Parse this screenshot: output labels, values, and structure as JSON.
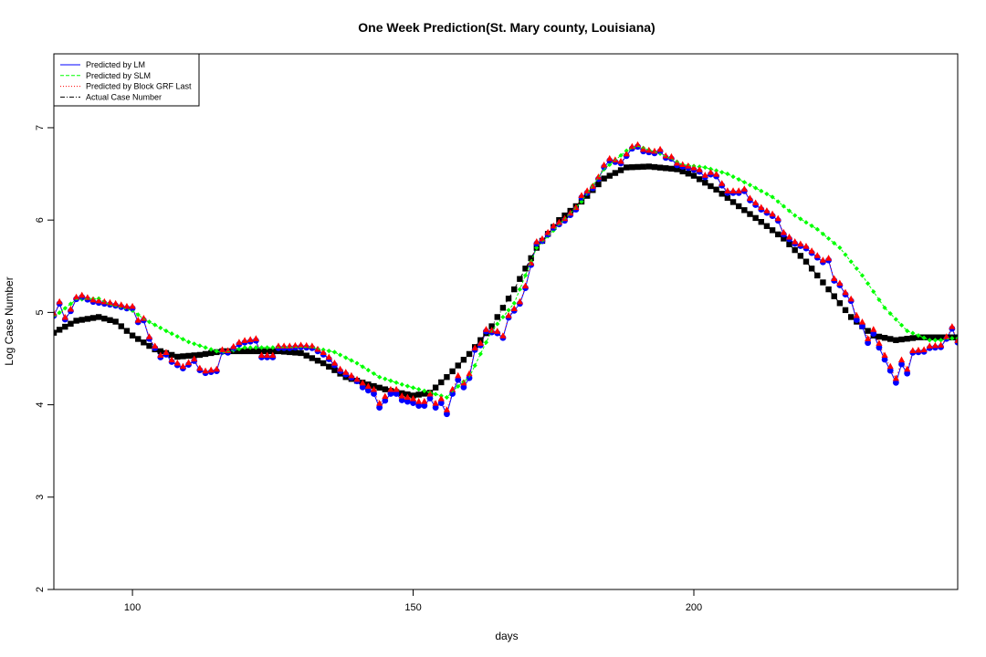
{
  "chart_data": {
    "type": "scatter",
    "title": "One Week Prediction(St. Mary county, Louisiana)",
    "xlabel": "days",
    "ylabel": "Log Case Number",
    "xlim": [
      86,
      247
    ],
    "ylim": [
      2,
      7.8
    ],
    "x_ticks": [
      100,
      150,
      200
    ],
    "y_ticks": [
      2,
      3,
      4,
      5,
      6,
      7
    ],
    "grid": false,
    "legend_position": "top-left",
    "legend": [
      {
        "label": "Predicted by LM",
        "color": "#0000ff",
        "style": "solid"
      },
      {
        "label": "Predicted by SLM",
        "color": "#00ff00",
        "style": "dashed"
      },
      {
        "label": "Predicted by Block GRF Last",
        "color": "#ff0000",
        "style": "dotted"
      },
      {
        "label": "Actual Case Number",
        "color": "#000000",
        "style": "dotdash"
      }
    ],
    "actual_knots": [
      [
        86,
        4.78
      ],
      [
        90,
        4.91
      ],
      [
        94,
        4.95
      ],
      [
        97,
        4.9
      ],
      [
        100,
        4.75
      ],
      [
        104,
        4.6
      ],
      [
        108,
        4.52
      ],
      [
        112,
        4.54
      ],
      [
        116,
        4.58
      ],
      [
        120,
        4.58
      ],
      [
        126,
        4.58
      ],
      [
        130,
        4.56
      ],
      [
        134,
        4.45
      ],
      [
        138,
        4.3
      ],
      [
        142,
        4.22
      ],
      [
        146,
        4.15
      ],
      [
        150,
        4.1
      ],
      [
        153,
        4.13
      ],
      [
        156,
        4.3
      ],
      [
        160,
        4.55
      ],
      [
        164,
        4.85
      ],
      [
        168,
        5.25
      ],
      [
        172,
        5.7
      ],
      [
        176,
        6.0
      ],
      [
        180,
        6.2
      ],
      [
        184,
        6.45
      ],
      [
        188,
        6.57
      ],
      [
        192,
        6.58
      ],
      [
        197,
        6.55
      ],
      [
        200,
        6.48
      ],
      [
        204,
        6.33
      ],
      [
        208,
        6.15
      ],
      [
        212,
        5.98
      ],
      [
        216,
        5.8
      ],
      [
        220,
        5.55
      ],
      [
        224,
        5.25
      ],
      [
        228,
        4.95
      ],
      [
        232,
        4.75
      ],
      [
        236,
        4.7
      ],
      [
        240,
        4.73
      ]
    ],
    "slm_knots": [
      [
        86,
        4.95
      ],
      [
        90,
        5.14
      ],
      [
        94,
        5.15
      ],
      [
        96,
        5.08
      ],
      [
        100,
        5.02
      ],
      [
        102,
        4.93
      ],
      [
        106,
        4.8
      ],
      [
        110,
        4.68
      ],
      [
        114,
        4.6
      ],
      [
        116,
        4.56
      ],
      [
        120,
        4.62
      ],
      [
        126,
        4.62
      ],
      [
        132,
        4.62
      ],
      [
        136,
        4.57
      ],
      [
        140,
        4.45
      ],
      [
        144,
        4.3
      ],
      [
        148,
        4.22
      ],
      [
        152,
        4.15
      ],
      [
        156,
        4.08
      ],
      [
        158,
        4.2
      ],
      [
        160,
        4.3
      ],
      [
        164,
        4.8
      ],
      [
        168,
        5.1
      ],
      [
        172,
        5.7
      ],
      [
        176,
        5.95
      ],
      [
        180,
        6.2
      ],
      [
        184,
        6.55
      ],
      [
        188,
        6.75
      ],
      [
        190,
        6.8
      ],
      [
        194,
        6.72
      ],
      [
        198,
        6.6
      ],
      [
        202,
        6.57
      ],
      [
        206,
        6.5
      ],
      [
        210,
        6.38
      ],
      [
        214,
        6.25
      ],
      [
        218,
        6.05
      ],
      [
        222,
        5.9
      ],
      [
        226,
        5.7
      ],
      [
        230,
        5.4
      ],
      [
        234,
        5.05
      ],
      [
        238,
        4.8
      ],
      [
        242,
        4.7
      ],
      [
        244,
        4.7
      ],
      [
        246,
        4.72
      ]
    ],
    "predicted_knots": [
      [
        86,
        4.97
      ],
      [
        87,
        5.1
      ],
      [
        88,
        4.93
      ],
      [
        89,
        5.02
      ],
      [
        90,
        5.15
      ],
      [
        91,
        5.17
      ],
      [
        93,
        5.12
      ],
      [
        95,
        5.1
      ],
      [
        97,
        5.08
      ],
      [
        99,
        5.05
      ],
      [
        100,
        5.05
      ],
      [
        101,
        4.9
      ],
      [
        102,
        4.92
      ],
      [
        103,
        4.72
      ],
      [
        104,
        4.62
      ],
      [
        105,
        4.52
      ],
      [
        106,
        4.55
      ],
      [
        107,
        4.47
      ],
      [
        109,
        4.4
      ],
      [
        111,
        4.48
      ],
      [
        112,
        4.38
      ],
      [
        113,
        4.35
      ],
      [
        115,
        4.37
      ],
      [
        116,
        4.58
      ],
      [
        117,
        4.57
      ],
      [
        119,
        4.66
      ],
      [
        120,
        4.68
      ],
      [
        122,
        4.7
      ],
      [
        123,
        4.52
      ],
      [
        125,
        4.52
      ],
      [
        126,
        4.62
      ],
      [
        128,
        4.62
      ],
      [
        130,
        4.63
      ],
      [
        132,
        4.62
      ],
      [
        134,
        4.55
      ],
      [
        135,
        4.5
      ],
      [
        137,
        4.37
      ],
      [
        139,
        4.3
      ],
      [
        141,
        4.22
      ],
      [
        143,
        4.15
      ],
      [
        144,
        4.0
      ],
      [
        146,
        4.15
      ],
      [
        147,
        4.15
      ],
      [
        148,
        4.08
      ],
      [
        150,
        4.05
      ],
      [
        151,
        4.02
      ],
      [
        152,
        4.02
      ],
      [
        153,
        4.1
      ],
      [
        154,
        4.0
      ],
      [
        155,
        4.05
      ],
      [
        156,
        3.93
      ],
      [
        157,
        4.15
      ],
      [
        158,
        4.3
      ],
      [
        159,
        4.22
      ],
      [
        160,
        4.32
      ],
      [
        161,
        4.6
      ],
      [
        162,
        4.65
      ],
      [
        163,
        4.8
      ],
      [
        165,
        4.78
      ],
      [
        166,
        4.73
      ],
      [
        167,
        4.95
      ],
      [
        169,
        5.1
      ],
      [
        170,
        5.27
      ],
      [
        171,
        5.52
      ],
      [
        172,
        5.75
      ],
      [
        173,
        5.78
      ],
      [
        175,
        5.92
      ],
      [
        177,
        6.0
      ],
      [
        179,
        6.12
      ],
      [
        180,
        6.25
      ],
      [
        182,
        6.35
      ],
      [
        183,
        6.45
      ],
      [
        184,
        6.58
      ],
      [
        185,
        6.65
      ],
      [
        187,
        6.62
      ],
      [
        188,
        6.7
      ],
      [
        189,
        6.78
      ],
      [
        190,
        6.8
      ],
      [
        191,
        6.75
      ],
      [
        193,
        6.73
      ],
      [
        194,
        6.75
      ],
      [
        195,
        6.68
      ],
      [
        196,
        6.67
      ],
      [
        197,
        6.6
      ],
      [
        199,
        6.57
      ],
      [
        201,
        6.53
      ],
      [
        202,
        6.47
      ],
      [
        203,
        6.5
      ],
      [
        204,
        6.48
      ],
      [
        205,
        6.38
      ],
      [
        206,
        6.3
      ],
      [
        208,
        6.3
      ],
      [
        209,
        6.32
      ],
      [
        210,
        6.22
      ],
      [
        212,
        6.12
      ],
      [
        214,
        6.05
      ],
      [
        215,
        6.0
      ],
      [
        216,
        5.85
      ],
      [
        218,
        5.75
      ],
      [
        220,
        5.7
      ],
      [
        222,
        5.6
      ],
      [
        223,
        5.55
      ],
      [
        224,
        5.57
      ],
      [
        225,
        5.35
      ],
      [
        226,
        5.3
      ],
      [
        227,
        5.2
      ],
      [
        228,
        5.13
      ],
      [
        229,
        4.95
      ],
      [
        230,
        4.88
      ],
      [
        231,
        4.7
      ],
      [
        232,
        4.8
      ],
      [
        233,
        4.65
      ],
      [
        234,
        4.52
      ],
      [
        235,
        4.4
      ],
      [
        236,
        4.27
      ],
      [
        237,
        4.47
      ],
      [
        238,
        4.37
      ],
      [
        239,
        4.57
      ],
      [
        241,
        4.58
      ],
      [
        242,
        4.62
      ],
      [
        244,
        4.63
      ],
      [
        245,
        4.72
      ],
      [
        246,
        4.83
      ],
      [
        247,
        4.68
      ]
    ],
    "series": [
      {
        "name": "Actual Case Number",
        "color": "#000000",
        "marker": "square"
      },
      {
        "name": "Predicted by SLM",
        "color": "#00ff00",
        "marker": "small-diamond"
      },
      {
        "name": "Predicted by LM",
        "color": "#0000ff",
        "marker": "circle"
      },
      {
        "name": "Predicted by Block GRF Last",
        "color": "#ff0000",
        "marker": "triangle"
      }
    ]
  }
}
